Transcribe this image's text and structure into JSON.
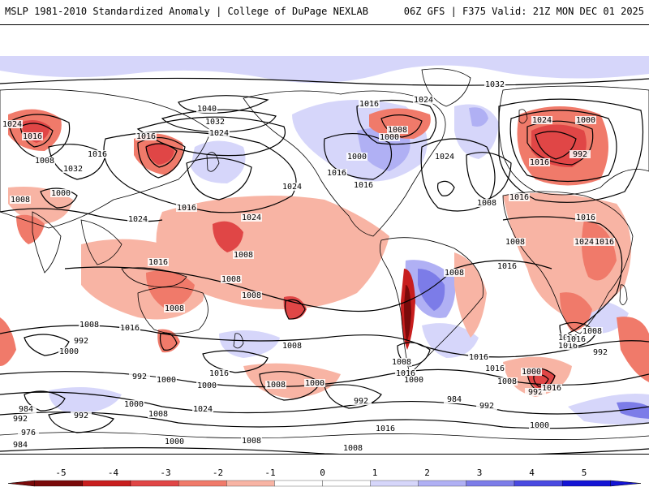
{
  "header": {
    "title_left": "MSLP 1981-2010 Standardized Anomaly | College of DuPage NEXLAB",
    "title_right": "06Z GFS | F375 Valid: 21Z MON DEC 01 2025"
  },
  "colors": {
    "neg5": "#7a0a0a",
    "neg4": "#c81e1e",
    "neg3": "#e04646",
    "neg2": "#f07a6a",
    "neg1": "#f8b4a4",
    "zero": "#ffffff",
    "pos1": "#d6d6fa",
    "pos2": "#b0b0f4",
    "pos3": "#7c7ce8",
    "pos4": "#4a4ae0",
    "pos5": "#1414d4",
    "land": "#000000",
    "isobar": "#000000"
  },
  "colorbar": {
    "ticks": [
      "-5",
      "-4",
      "-3",
      "-2",
      "-1",
      "0",
      "1",
      "2",
      "3",
      "4",
      "5"
    ]
  },
  "isobar_labels": [
    "1032",
    "1040",
    "1032",
    "1024",
    "1016",
    "1016",
    "1000",
    "1008",
    "1024",
    "1016",
    "1032",
    "1024",
    "1016",
    "1008",
    "1008",
    "1000",
    "1024",
    "1016",
    "1024",
    "1016",
    "1000",
    "1016",
    "1024",
    "1008",
    "1016",
    "1024",
    "1016",
    "992",
    "1000",
    "1016",
    "1024",
    "1016",
    "1024",
    "1008",
    "1008",
    "1016",
    "1008",
    "1008",
    "1008",
    "1008",
    "1016",
    "1008",
    "1008",
    "1016",
    "1016",
    "1016",
    "1024",
    "1016",
    "1016",
    "1000",
    "992",
    "1000",
    "1024",
    "1008",
    "1000",
    "984",
    "992",
    "976",
    "984",
    "992",
    "1008",
    "1000",
    "992",
    "984",
    "992",
    "1016",
    "1008",
    "1024",
    "1000",
    "1008",
    "992",
    "1000",
    "1008",
    "1000",
    "992",
    "1000",
    "1008",
    "992",
    "1016",
    "1016",
    "1008",
    "1016",
    "1000"
  ]
}
